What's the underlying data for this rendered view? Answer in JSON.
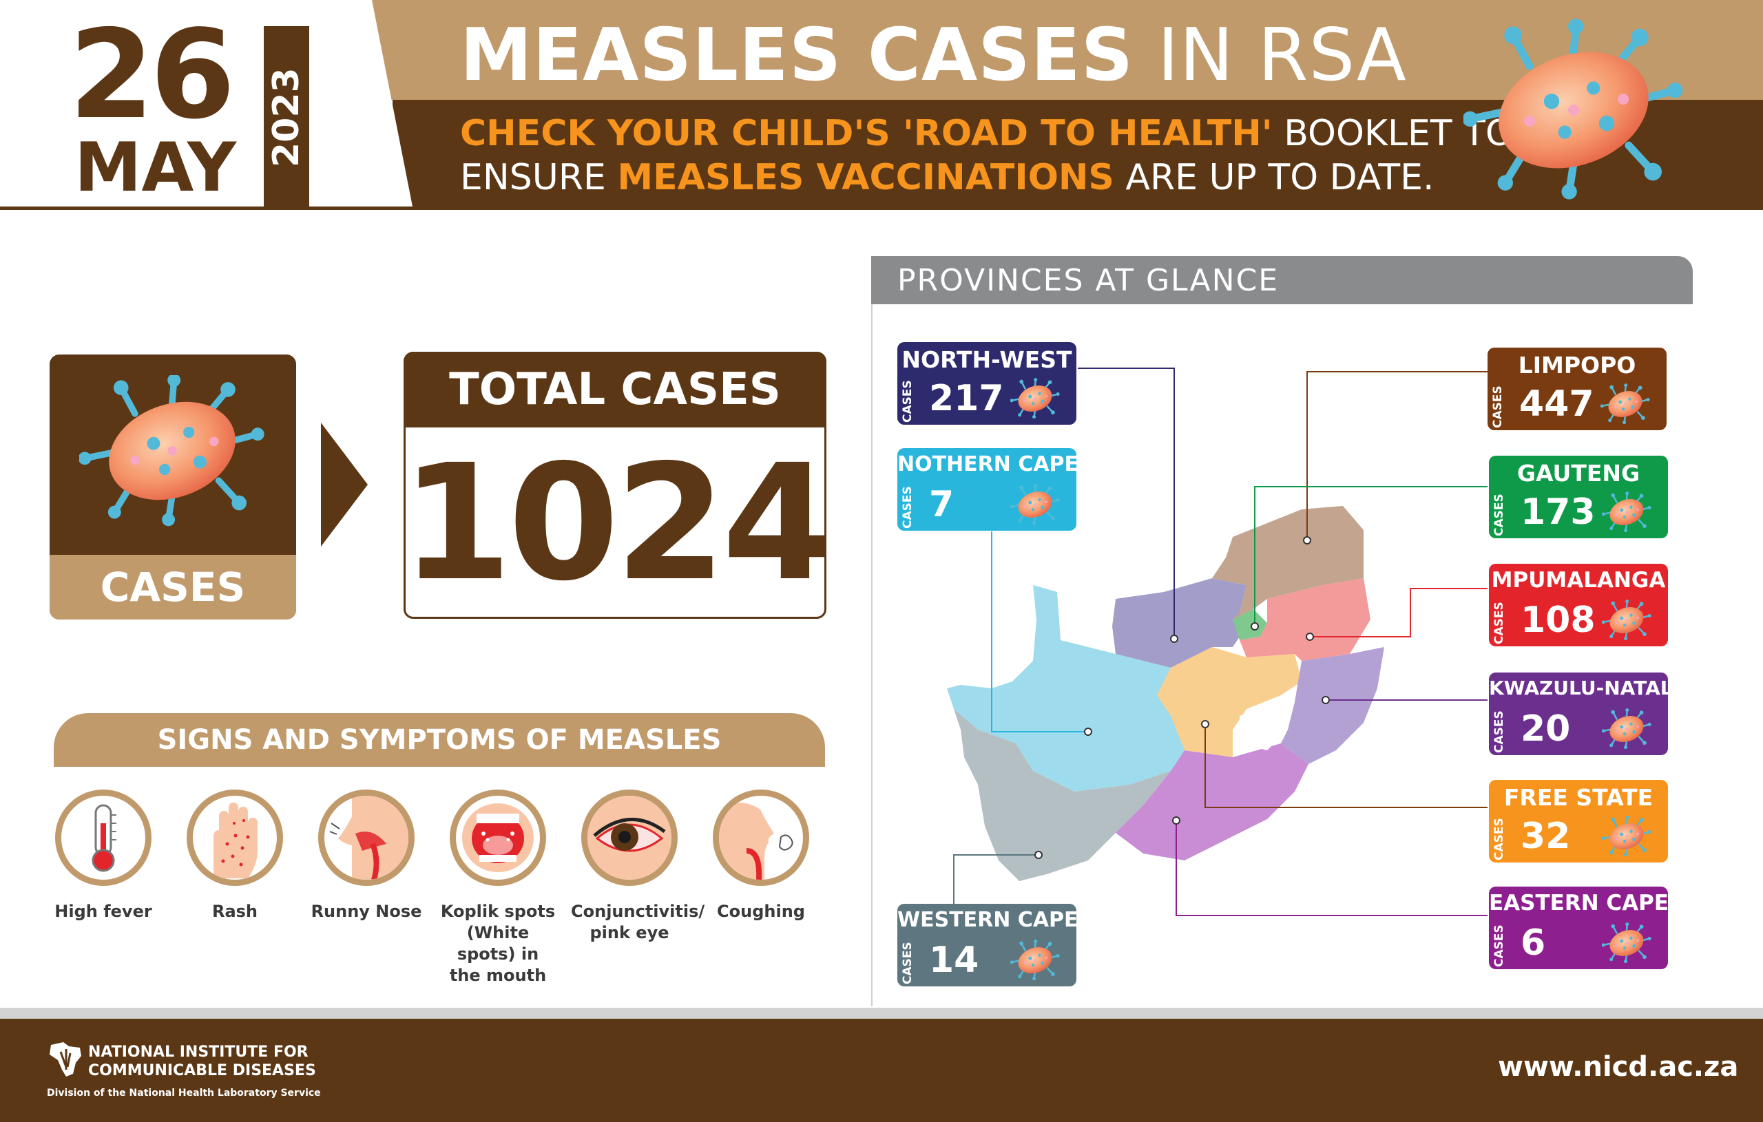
{
  "header": {
    "day": "26",
    "month": "MAY",
    "year": "2023",
    "title_bold": "MEASLES CASES",
    "title_light": "IN RSA",
    "subtitle": {
      "line1_highlight": "CHECK YOUR CHILD'S 'ROAD TO HEALTH'",
      "line1_rest": "BOOKLET TO",
      "line2_start": "ENSURE",
      "line2_highlight": "MEASLES VACCINATIONS",
      "line2_rest": "ARE UP TO DATE."
    }
  },
  "summary": {
    "cases_label": "CASES",
    "total_label": "TOTAL CASES",
    "total_value": "1024"
  },
  "symptoms": {
    "heading": "SIGNS AND SYMPTOMS OF MEASLES",
    "items": [
      {
        "label": "High fever",
        "icon": "thermometer-icon"
      },
      {
        "label": "Rash",
        "icon": "hand-rash-icon"
      },
      {
        "label": "Runny Nose",
        "icon": "nose-icon"
      },
      {
        "label": "Koplik spots (White spots) in the mouth",
        "icon": "mouth-icon"
      },
      {
        "label": "Conjunctivitis/ pink eye",
        "icon": "eye-icon"
      },
      {
        "label": "Coughing",
        "icon": "cough-icon"
      }
    ]
  },
  "provinces": {
    "heading": "PROVINCES AT GLANCE",
    "cases_word": "CASES",
    "items": [
      {
        "name": "NORTH-WEST",
        "cases": "217",
        "color": "#2e2a6e"
      },
      {
        "name": "NOTHERN CAPE",
        "cases": "7",
        "color": "#29b6dc"
      },
      {
        "name": "WESTERN CAPE",
        "cases": "14",
        "color": "#5d7680"
      },
      {
        "name": "LIMPOPO",
        "cases": "447",
        "color": "#7a3b10"
      },
      {
        "name": "GAUTENG",
        "cases": "173",
        "color": "#0e9a48"
      },
      {
        "name": "MPUMALANGA",
        "cases": "108",
        "color": "#e3242b"
      },
      {
        "name": "KWAZULU-NATAL",
        "cases": "20",
        "color": "#6b2f8e"
      },
      {
        "name": "FREE STATE",
        "cases": "32",
        "color": "#f7941d"
      },
      {
        "name": "EASTERN CAPE",
        "cases": "6",
        "color": "#8e1f8e"
      }
    ]
  },
  "footer": {
    "org_line1": "NATIONAL INSTITUTE FOR",
    "org_line2": "COMMUNICABLE DISEASES",
    "division": "Division of the National Health Laboratory Service",
    "url": "www.nicd.ac.za"
  },
  "colors": {
    "brown": "#5c3715",
    "tan": "#c19a6b",
    "orange": "#f7941d",
    "grey": "#8a8b8d"
  }
}
